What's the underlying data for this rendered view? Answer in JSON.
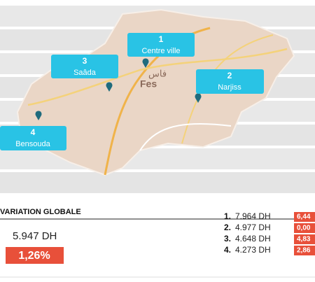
{
  "map": {
    "city_labels": [
      "Fes",
      "فاس"
    ],
    "markers": [
      {
        "number": "1",
        "name": "Centre ville"
      },
      {
        "number": "2",
        "name": "Narjiss"
      },
      {
        "number": "3",
        "name": "Saâda"
      },
      {
        "number": "4",
        "name": "Bensouda"
      }
    ]
  },
  "summary": {
    "title": "VARIATION GLOBALE",
    "price": "5.947 DH",
    "change": "1,26%"
  },
  "ranking": [
    {
      "rank": "1.",
      "price": "7.964 DH",
      "change": "6,44"
    },
    {
      "rank": "2.",
      "price": "4.977 DH",
      "change": "0,00"
    },
    {
      "rank": "3.",
      "price": "4.648 DH",
      "change": "4,83"
    },
    {
      "rank": "4.",
      "price": "4.273 DH",
      "change": "2,86"
    }
  ]
}
